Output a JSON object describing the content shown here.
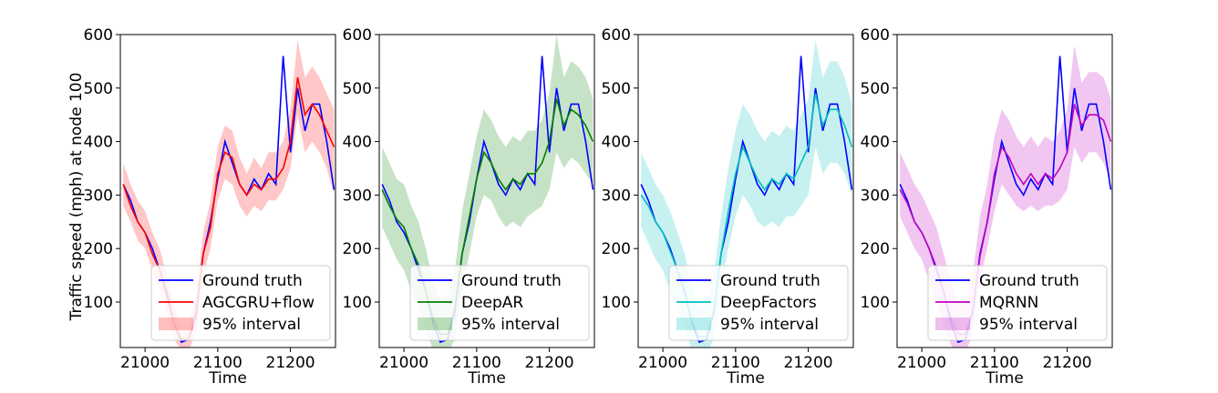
{
  "figure": {
    "ylabel": "Traffic speed (mph) at node 100",
    "xlabel": "Time"
  },
  "colors": {
    "ground_truth": "#0000ff",
    "AGCGRU+flow": "#ff0000",
    "DeepAR": "#008000",
    "DeepFactors": "#00bfbf",
    "MQRNN": "#bf00bf"
  },
  "chart_data": [
    {
      "type": "line",
      "title": "",
      "xlabel": "Time",
      "ylabel": "Traffic speed (mph) at node 100",
      "xlim": [
        20966,
        21262
      ],
      "ylim": [
        15,
        600
      ],
      "xticks": [
        21000,
        21100,
        21200
      ],
      "yticks": [
        100,
        200,
        300,
        400,
        500,
        600
      ],
      "legend": [
        "Ground truth",
        "AGCGRU+flow",
        "95% interval"
      ],
      "series": [
        {
          "name": "Ground truth",
          "x": [
            20970,
            20980,
            20990,
            21000,
            21010,
            21020,
            21030,
            21040,
            21050,
            21060,
            21070,
            21080,
            21090,
            21100,
            21110,
            21120,
            21130,
            21140,
            21150,
            21160,
            21170,
            21180,
            21190,
            21200,
            21210,
            21220,
            21230,
            21240,
            21250,
            21260
          ],
          "values": [
            320,
            290,
            250,
            230,
            200,
            160,
            120,
            60,
            25,
            30,
            80,
            190,
            250,
            330,
            400,
            360,
            320,
            300,
            330,
            310,
            340,
            320,
            560,
            380,
            500,
            420,
            470,
            470,
            400,
            310
          ]
        },
        {
          "name": "AGCGRU+flow",
          "x": [
            20970,
            20980,
            20990,
            21000,
            21010,
            21020,
            21030,
            21040,
            21050,
            21060,
            21070,
            21080,
            21090,
            21100,
            21110,
            21120,
            21130,
            21140,
            21150,
            21160,
            21170,
            21180,
            21190,
            21200,
            21210,
            21220,
            21230,
            21240,
            21250,
            21260
          ],
          "values": [
            320,
            280,
            250,
            230,
            190,
            160,
            110,
            60,
            30,
            30,
            70,
            190,
            240,
            340,
            380,
            370,
            320,
            300,
            320,
            310,
            330,
            330,
            350,
            400,
            520,
            450,
            470,
            450,
            420,
            390
          ]
        }
      ],
      "interval": {
        "name": "95% interval",
        "lower": [
          280,
          250,
          215,
          200,
          160,
          125,
          80,
          30,
          10,
          10,
          40,
          150,
          200,
          290,
          330,
          320,
          280,
          260,
          280,
          270,
          290,
          290,
          310,
          350,
          450,
          380,
          400,
          380,
          350,
          300
        ],
        "upper": [
          360,
          320,
          290,
          270,
          230,
          200,
          150,
          95,
          55,
          60,
          110,
          230,
          290,
          390,
          430,
          420,
          370,
          340,
          370,
          350,
          380,
          380,
          400,
          460,
          590,
          520,
          540,
          520,
          490,
          460
        ]
      }
    },
    {
      "type": "line",
      "title": "",
      "xlabel": "Time",
      "ylabel": "",
      "xlim": [
        20966,
        21262
      ],
      "ylim": [
        15,
        600
      ],
      "xticks": [
        21000,
        21100,
        21200
      ],
      "yticks": [
        100,
        200,
        300,
        400,
        500,
        600
      ],
      "legend": [
        "Ground truth",
        "DeepAR",
        "95% interval"
      ],
      "series": [
        {
          "name": "Ground truth",
          "x": [
            20970,
            20980,
            20990,
            21000,
            21010,
            21020,
            21030,
            21040,
            21050,
            21060,
            21070,
            21080,
            21090,
            21100,
            21110,
            21120,
            21130,
            21140,
            21150,
            21160,
            21170,
            21180,
            21190,
            21200,
            21210,
            21220,
            21230,
            21240,
            21250,
            21260
          ],
          "values": [
            320,
            290,
            250,
            230,
            200,
            160,
            120,
            60,
            25,
            30,
            80,
            190,
            250,
            330,
            400,
            360,
            320,
            300,
            330,
            310,
            340,
            320,
            560,
            380,
            500,
            420,
            470,
            470,
            400,
            310
          ]
        },
        {
          "name": "DeepAR",
          "x": [
            20970,
            20980,
            20990,
            21000,
            21010,
            21020,
            21030,
            21040,
            21050,
            21060,
            21070,
            21080,
            21090,
            21100,
            21110,
            21120,
            21130,
            21140,
            21150,
            21160,
            21170,
            21180,
            21190,
            21200,
            21210,
            21220,
            21230,
            21240,
            21250,
            21260
          ],
          "values": [
            310,
            280,
            255,
            240,
            200,
            170,
            120,
            70,
            40,
            40,
            90,
            190,
            260,
            330,
            380,
            360,
            330,
            310,
            330,
            320,
            340,
            340,
            360,
            400,
            480,
            430,
            460,
            450,
            430,
            400
          ]
        }
      ],
      "interval": {
        "name": "95% interval",
        "lower": [
          240,
          210,
          180,
          160,
          120,
          90,
          50,
          10,
          5,
          5,
          30,
          120,
          190,
          260,
          300,
          290,
          260,
          240,
          250,
          240,
          260,
          270,
          280,
          310,
          380,
          350,
          370,
          360,
          340,
          320
        ],
        "upper": [
          390,
          360,
          330,
          320,
          280,
          250,
          200,
          140,
          100,
          110,
          160,
          270,
          340,
          410,
          460,
          440,
          410,
          390,
          410,
          400,
          420,
          420,
          440,
          490,
          600,
          520,
          550,
          540,
          520,
          480
        ]
      }
    },
    {
      "type": "line",
      "title": "",
      "xlabel": "Time",
      "ylabel": "",
      "xlim": [
        20966,
        21262
      ],
      "ylim": [
        15,
        600
      ],
      "xticks": [
        21000,
        21100,
        21200
      ],
      "yticks": [
        100,
        200,
        300,
        400,
        500,
        600
      ],
      "legend": [
        "Ground truth",
        "DeepFactors",
        "95% interval"
      ],
      "series": [
        {
          "name": "Ground truth",
          "x": [
            20970,
            20980,
            20990,
            21000,
            21010,
            21020,
            21030,
            21040,
            21050,
            21060,
            21070,
            21080,
            21090,
            21100,
            21110,
            21120,
            21130,
            21140,
            21150,
            21160,
            21170,
            21180,
            21190,
            21200,
            21210,
            21220,
            21230,
            21240,
            21250,
            21260
          ],
          "values": [
            320,
            290,
            250,
            230,
            200,
            160,
            120,
            60,
            25,
            30,
            80,
            190,
            250,
            330,
            400,
            360,
            320,
            300,
            330,
            310,
            340,
            320,
            560,
            380,
            500,
            420,
            470,
            470,
            400,
            310
          ]
        },
        {
          "name": "DeepFactors",
          "x": [
            20970,
            20980,
            20990,
            21000,
            21010,
            21020,
            21030,
            21040,
            21050,
            21060,
            21070,
            21080,
            21090,
            21100,
            21110,
            21120,
            21130,
            21140,
            21150,
            21160,
            21170,
            21180,
            21190,
            21200,
            21210,
            21220,
            21230,
            21240,
            21250,
            21260
          ],
          "values": [
            300,
            280,
            250,
            230,
            195,
            160,
            115,
            65,
            35,
            35,
            85,
            190,
            270,
            340,
            390,
            360,
            330,
            310,
            330,
            320,
            340,
            330,
            360,
            390,
            490,
            430,
            460,
            460,
            430,
            390
          ]
        }
      ],
      "interval": {
        "name": "95% interval",
        "lower": [
          240,
          210,
          180,
          160,
          120,
          90,
          50,
          10,
          5,
          5,
          30,
          130,
          200,
          260,
          300,
          280,
          250,
          240,
          250,
          240,
          260,
          260,
          280,
          300,
          390,
          340,
          360,
          360,
          340,
          300
        ],
        "upper": [
          380,
          350,
          320,
          300,
          270,
          230,
          190,
          130,
          90,
          100,
          150,
          260,
          350,
          420,
          470,
          450,
          420,
          400,
          420,
          410,
          430,
          420,
          450,
          480,
          590,
          520,
          550,
          550,
          520,
          470
        ]
      }
    },
    {
      "type": "line",
      "title": "",
      "xlabel": "Time",
      "ylabel": "",
      "xlim": [
        20966,
        21262
      ],
      "ylim": [
        15,
        600
      ],
      "xticks": [
        21000,
        21100,
        21200
      ],
      "yticks": [
        100,
        200,
        300,
        400,
        500,
        600
      ],
      "legend": [
        "Ground truth",
        "MQRNN",
        "95% interval"
      ],
      "series": [
        {
          "name": "Ground truth",
          "x": [
            20970,
            20980,
            20990,
            21000,
            21010,
            21020,
            21030,
            21040,
            21050,
            21060,
            21070,
            21080,
            21090,
            21100,
            21110,
            21120,
            21130,
            21140,
            21150,
            21160,
            21170,
            21180,
            21190,
            21200,
            21210,
            21220,
            21230,
            21240,
            21250,
            21260
          ],
          "values": [
            320,
            290,
            250,
            230,
            200,
            160,
            120,
            60,
            25,
            30,
            80,
            190,
            250,
            330,
            400,
            360,
            320,
            300,
            330,
            310,
            340,
            320,
            560,
            380,
            500,
            420,
            470,
            470,
            400,
            310
          ]
        },
        {
          "name": "MQRNN",
          "x": [
            20970,
            20980,
            20990,
            21000,
            21010,
            21020,
            21030,
            21040,
            21050,
            21060,
            21070,
            21080,
            21090,
            21100,
            21110,
            21120,
            21130,
            21140,
            21150,
            21160,
            21170,
            21180,
            21190,
            21200,
            21210,
            21220,
            21230,
            21240,
            21250,
            21260
          ],
          "values": [
            310,
            285,
            250,
            230,
            200,
            165,
            120,
            70,
            40,
            40,
            85,
            185,
            250,
            340,
            390,
            370,
            340,
            320,
            340,
            320,
            340,
            330,
            350,
            380,
            470,
            430,
            450,
            450,
            440,
            400
          ]
        }
      ],
      "interval": {
        "name": "95% interval",
        "lower": [
          260,
          230,
          200,
          180,
          140,
          100,
          60,
          20,
          5,
          5,
          40,
          140,
          200,
          270,
          320,
          300,
          280,
          270,
          280,
          270,
          280,
          280,
          290,
          310,
          390,
          360,
          380,
          380,
          360,
          330
        ],
        "upper": [
          380,
          350,
          320,
          300,
          270,
          240,
          190,
          140,
          100,
          100,
          150,
          260,
          320,
          410,
          460,
          440,
          410,
          390,
          410,
          390,
          410,
          400,
          420,
          460,
          580,
          510,
          530,
          530,
          520,
          480
        ]
      }
    }
  ]
}
